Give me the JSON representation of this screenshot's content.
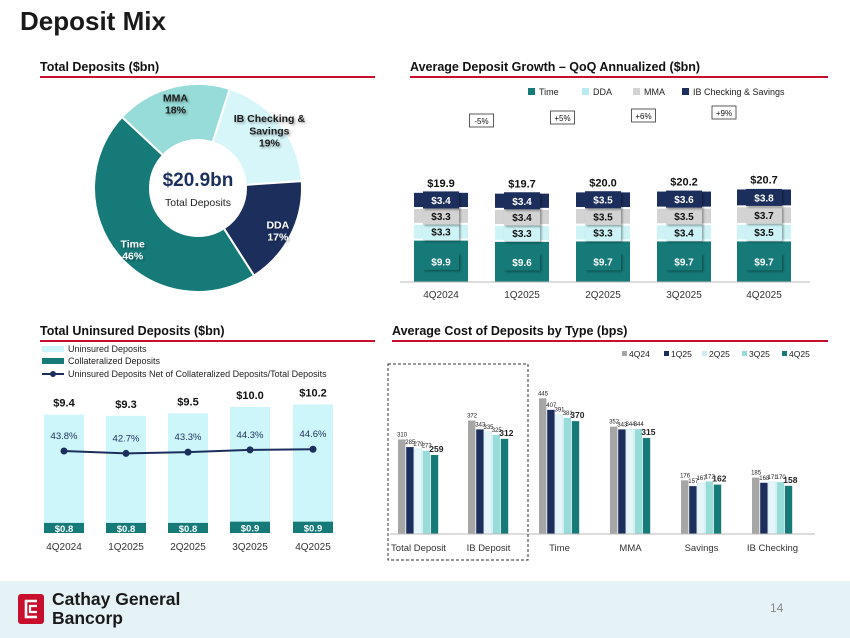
{
  "page": {
    "title": "Deposit Mix",
    "page_number": "14"
  },
  "footer": {
    "logo_line1": "Cathay General",
    "logo_line2": "Bancorp"
  },
  "colors": {
    "accent_red": "#c8102e",
    "navy": "#1c2f5c",
    "teal": "#157a78",
    "light_teal": "#97dcd8",
    "mint": "#cdf3f6",
    "gray": "#d3d3d3",
    "dark_gray": "#a6a6a6"
  },
  "chart_data": [
    {
      "id": "total_deposits",
      "type": "pie",
      "title": "Total Deposits ($bn)",
      "center_value": "$20.9bn",
      "center_label": "Total Deposits",
      "slices": [
        {
          "name": "Time",
          "value": 46,
          "label": "46%",
          "color": "#157a78"
        },
        {
          "name": "MMA",
          "value": 18,
          "label": "18%",
          "color": "#97dcd8"
        },
        {
          "name": "IB Checking & Savings",
          "value": 19,
          "label": "19%",
          "color": "#d6f6fa"
        },
        {
          "name": "DDA",
          "value": 17,
          "label": "17%",
          "color": "#1c2f5c"
        }
      ]
    },
    {
      "id": "avg_deposit_growth",
      "type": "bar",
      "stacked": true,
      "title": "Average Deposit Growth – QoQ Annualized ($bn)",
      "categories": [
        "4Q2024",
        "1Q2025",
        "2Q2025",
        "3Q2025",
        "4Q2025"
      ],
      "series": [
        {
          "name": "Time",
          "values": [
            9.9,
            9.6,
            9.7,
            9.7,
            9.7
          ],
          "labels": [
            "$9.9",
            "$9.6",
            "$9.7",
            "$9.7",
            "$9.7"
          ],
          "color": "#157a78"
        },
        {
          "name": "DDA",
          "values": [
            3.3,
            3.3,
            3.3,
            3.4,
            3.5
          ],
          "labels": [
            "$3.3",
            "$3.3",
            "$3.3",
            "$3.4",
            "$3.5"
          ],
          "color": "#cdf3f6"
        },
        {
          "name": "MMA",
          "values": [
            3.3,
            3.4,
            3.5,
            3.5,
            3.7
          ],
          "labels": [
            "$3.3",
            "$3.4",
            "$3.5",
            "$3.5",
            "$3.7"
          ],
          "color": "#d3d3d3"
        },
        {
          "name": "IB Checking & Savings",
          "values": [
            3.4,
            3.4,
            3.5,
            3.6,
            3.8
          ],
          "labels": [
            "$3.4",
            "$3.4",
            "$3.5",
            "$3.6",
            "$3.8"
          ],
          "color": "#1c2f5c"
        }
      ],
      "totals": [
        "$19.9",
        "$19.7",
        "$20.0",
        "$20.2",
        "$20.7"
      ],
      "growth_labels": [
        "-5%",
        "+5%",
        "+6%",
        "+9%"
      ],
      "legend_position": "top"
    },
    {
      "id": "uninsured_deposits",
      "type": "bar",
      "title": "Total Uninsured Deposits ($bn)",
      "categories": [
        "4Q2024",
        "1Q2025",
        "2Q2025",
        "3Q2025",
        "4Q2025"
      ],
      "series": [
        {
          "name": "Uninsured Deposits",
          "values": [
            9.4,
            9.3,
            9.5,
            10.0,
            10.2
          ],
          "labels": [
            "$9.4",
            "$9.3",
            "$9.5",
            "$10.0",
            "$10.2"
          ],
          "color": "#cdf6fb"
        },
        {
          "name": "Collateralized Deposits",
          "values": [
            0.8,
            0.8,
            0.8,
            0.9,
            0.9
          ],
          "labels": [
            "$0.8",
            "$0.8",
            "$0.8",
            "$0.9",
            "$0.9"
          ],
          "color": "#157a78"
        },
        {
          "name": "Uninsured Deposits Net of Collateralized Deposits/Total Deposits",
          "values": [
            43.8,
            42.7,
            43.3,
            44.3,
            44.6
          ],
          "labels": [
            "43.8%",
            "42.7%",
            "43.3%",
            "44.3%",
            "44.6%"
          ],
          "color": "#1c2f5c",
          "type": "line"
        }
      ],
      "legend_position": "top-left"
    },
    {
      "id": "avg_cost_by_type",
      "type": "bar",
      "title": "Average Cost of Deposits by Type (bps)",
      "categories": [
        "Total Deposit",
        "IB Deposit",
        "Time",
        "MMA",
        "Savings",
        "IB Checking"
      ],
      "series": [
        {
          "name": "4Q24",
          "values": [
            310,
            372,
            445,
            352,
            176,
            185
          ],
          "color": "#a6a6a6"
        },
        {
          "name": "1Q25",
          "values": [
            285,
            343,
            407,
            343,
            157,
            168
          ],
          "color": "#1c2f5c"
        },
        {
          "name": "2Q25",
          "values": [
            279,
            335,
            391,
            344,
            167,
            171
          ],
          "color": "#e4f6fa"
        },
        {
          "name": "3Q25",
          "values": [
            273,
            325,
            381,
            344,
            172,
            170
          ],
          "color": "#97dcd8"
        },
        {
          "name": "4Q25",
          "values": [
            259,
            312,
            370,
            315,
            162,
            158
          ],
          "color": "#157a78"
        }
      ],
      "highlight_categories": [
        "Total Deposit",
        "IB Deposit"
      ],
      "legend_position": "top-right"
    }
  ]
}
